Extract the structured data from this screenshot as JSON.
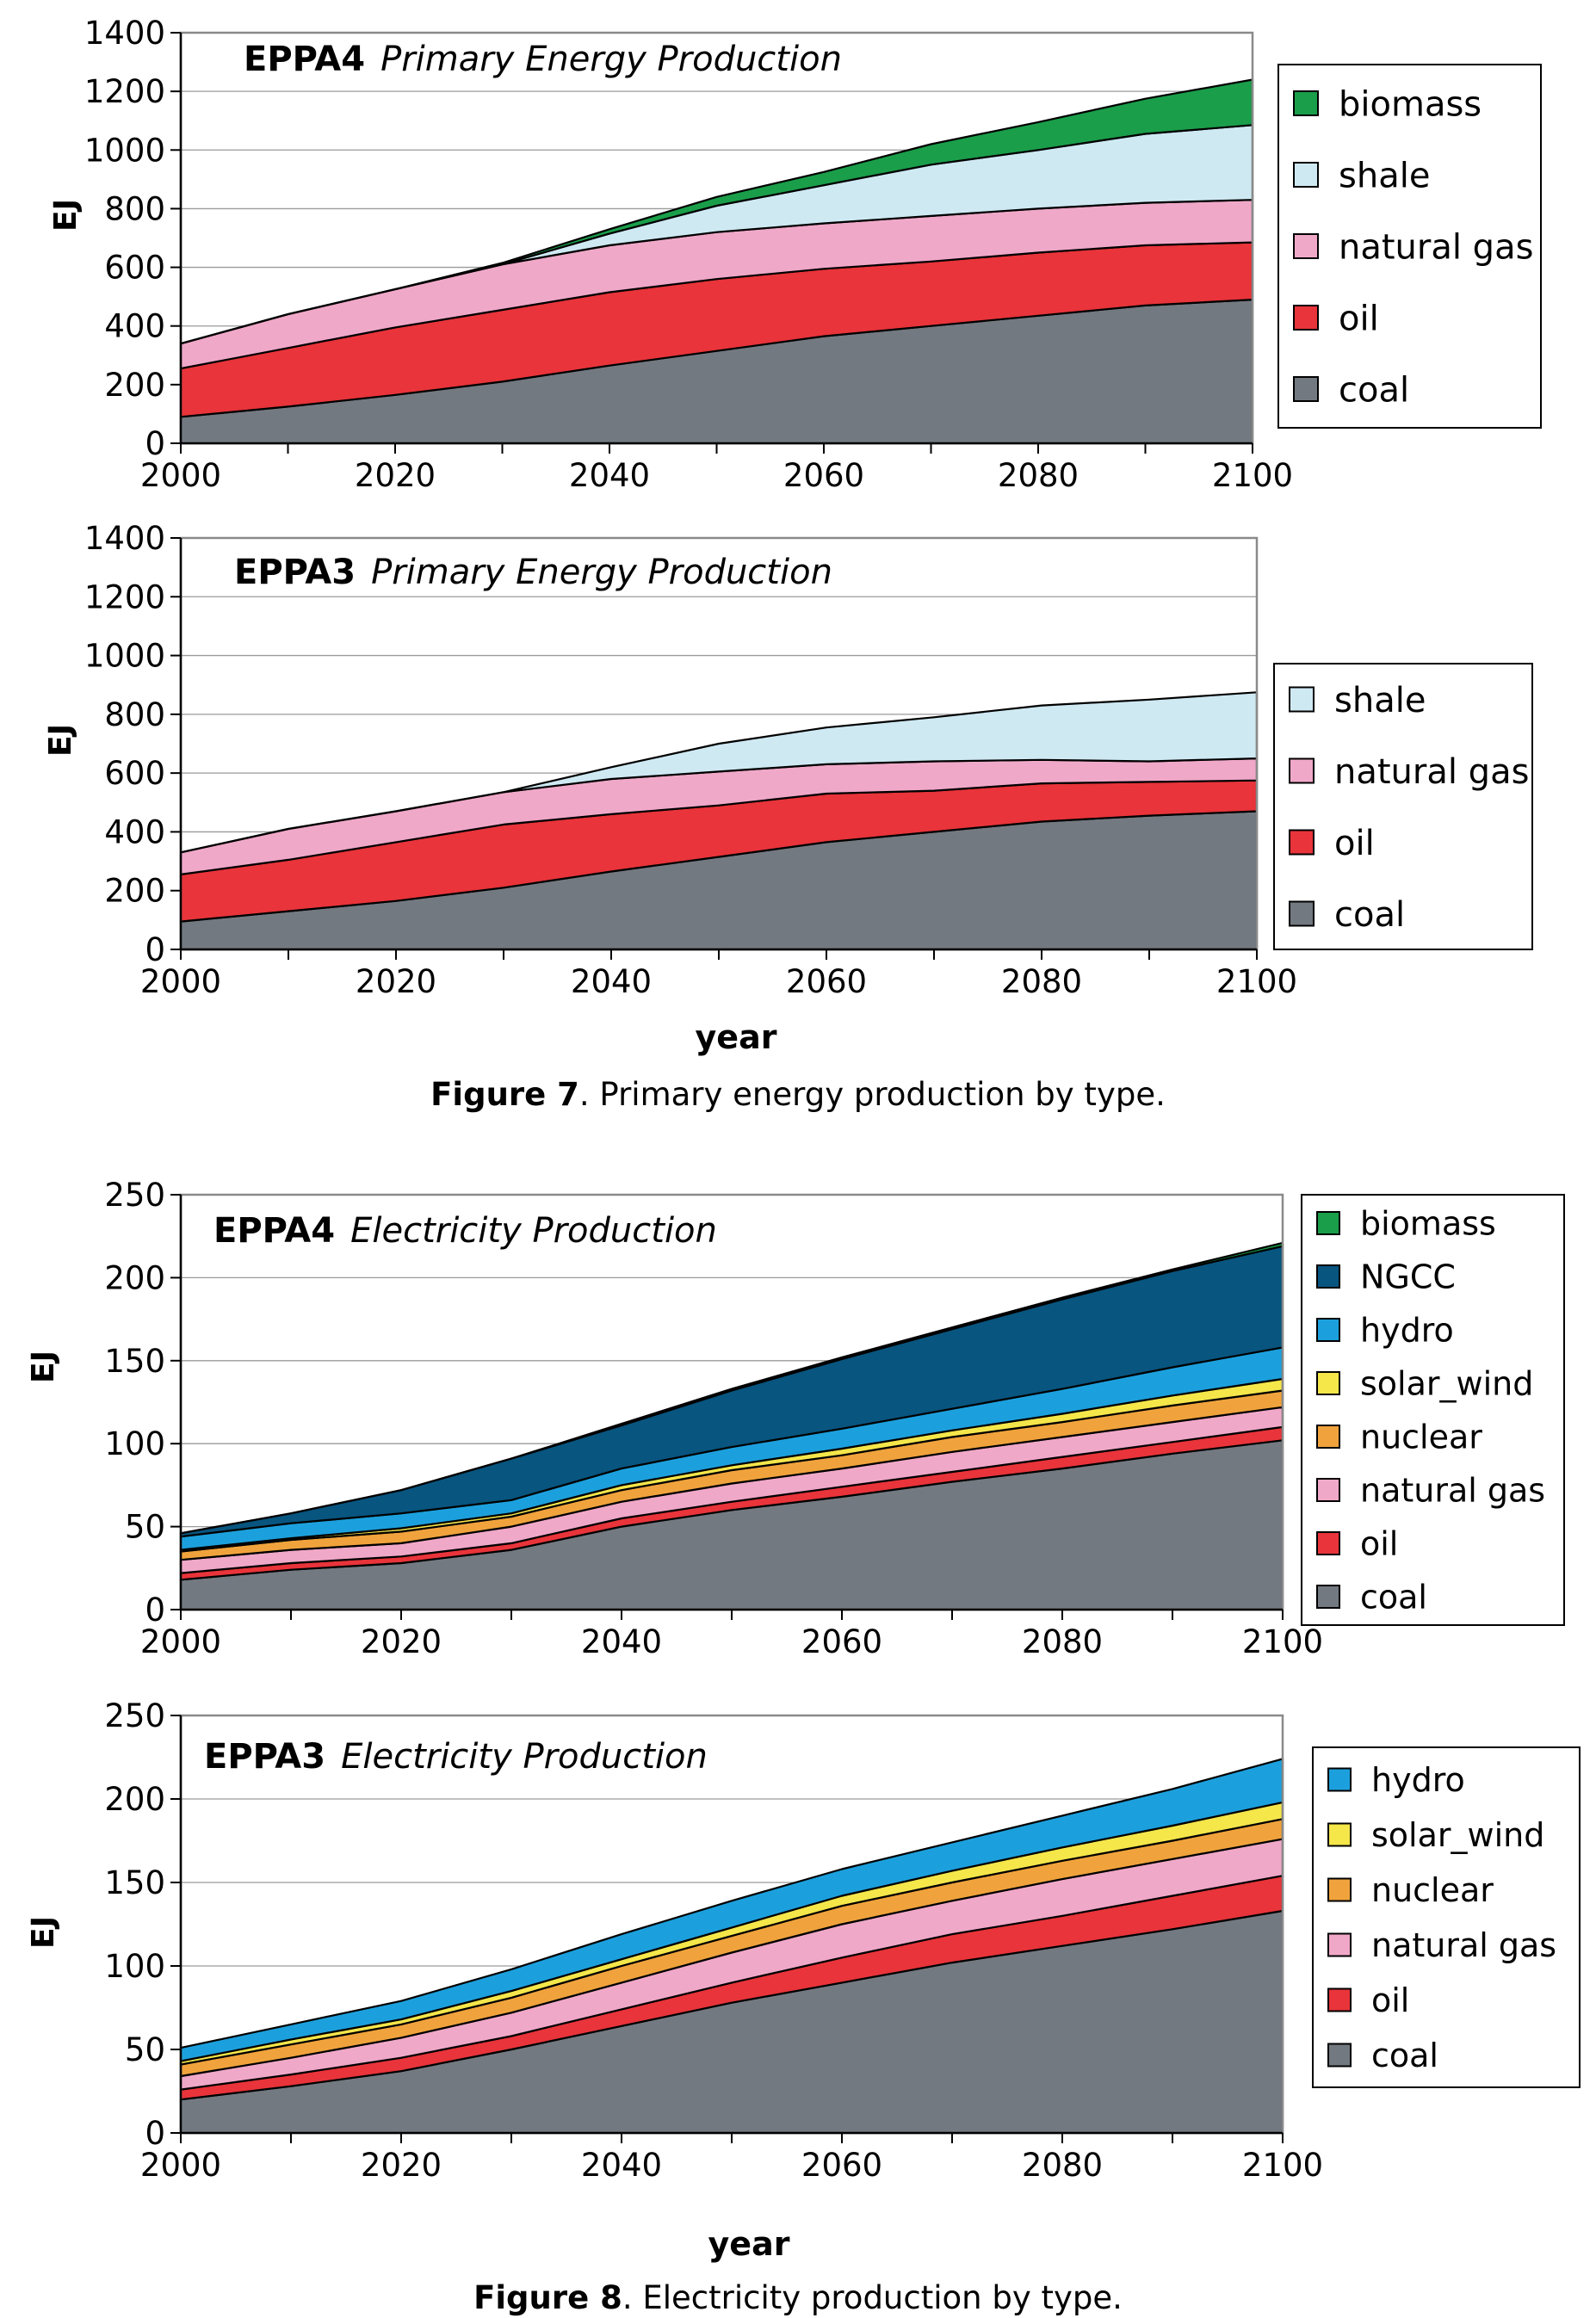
{
  "figure7": {
    "label": "Figure 7",
    "text": ". Primary energy production by type."
  },
  "figure8": {
    "label": "Figure 8",
    "text": ". Electricity production by type."
  },
  "colors": {
    "coal": "#737980",
    "oil": "#e8343a",
    "natural gas": "#f0a8c8",
    "shale": "#cfe9f3",
    "biomass": "#1a9e4a",
    "nuclear": "#f0a33c",
    "solar_wind": "#f5e64a",
    "hydro": "#1ca0dd",
    "NGCC": "#08557f"
  },
  "chart_data": [
    {
      "id": "c1",
      "type": "area",
      "stacked": true,
      "model": "EPPA4",
      "title": "Primary Energy Production",
      "xlabel": "",
      "ylabel": "EJ",
      "xlim": [
        2000,
        2100
      ],
      "ylim": [
        0,
        1400
      ],
      "yticks": [
        0,
        200,
        400,
        600,
        800,
        1000,
        1200,
        1400
      ],
      "xticks": [
        2000,
        2020,
        2040,
        2060,
        2080,
        2100
      ],
      "grid": true,
      "legend": [
        "biomass",
        "shale",
        "natural gas",
        "oil",
        "coal"
      ],
      "x": [
        2000,
        2010,
        2020,
        2030,
        2040,
        2050,
        2060,
        2070,
        2080,
        2090,
        2100
      ],
      "series": [
        {
          "name": "coal",
          "values": [
            90,
            125,
            165,
            210,
            265,
            315,
            365,
            400,
            435,
            470,
            490
          ]
        },
        {
          "name": "oil",
          "values": [
            165,
            200,
            230,
            245,
            250,
            245,
            230,
            220,
            215,
            205,
            195
          ]
        },
        {
          "name": "natural gas",
          "values": [
            85,
            115,
            130,
            155,
            160,
            160,
            155,
            155,
            150,
            145,
            145
          ]
        },
        {
          "name": "shale",
          "values": [
            0,
            0,
            0,
            0,
            40,
            90,
            130,
            175,
            200,
            235,
            255
          ]
        },
        {
          "name": "biomass",
          "values": [
            0,
            0,
            0,
            5,
            15,
            30,
            45,
            70,
            95,
            120,
            155
          ]
        }
      ]
    },
    {
      "id": "c2",
      "type": "area",
      "stacked": true,
      "model": "EPPA3",
      "title": "Primary Energy Production",
      "xlabel": "year",
      "ylabel": "EJ",
      "xlim": [
        2000,
        2100
      ],
      "ylim": [
        0,
        1400
      ],
      "yticks": [
        0,
        200,
        400,
        600,
        800,
        1000,
        1200,
        1400
      ],
      "xticks": [
        2000,
        2020,
        2040,
        2060,
        2080,
        2100
      ],
      "grid": true,
      "legend": [
        "shale",
        "natural gas",
        "oil",
        "coal"
      ],
      "x": [
        2000,
        2010,
        2020,
        2030,
        2040,
        2050,
        2060,
        2070,
        2080,
        2090,
        2100
      ],
      "series": [
        {
          "name": "coal",
          "values": [
            95,
            130,
            165,
            210,
            265,
            315,
            365,
            400,
            435,
            455,
            470
          ]
        },
        {
          "name": "oil",
          "values": [
            160,
            175,
            200,
            215,
            195,
            175,
            165,
            140,
            130,
            115,
            105
          ]
        },
        {
          "name": "natural gas",
          "values": [
            75,
            105,
            105,
            110,
            120,
            115,
            100,
            100,
            80,
            70,
            75
          ]
        },
        {
          "name": "shale",
          "values": [
            0,
            0,
            0,
            0,
            40,
            95,
            125,
            150,
            185,
            210,
            225
          ]
        }
      ]
    },
    {
      "id": "c3",
      "type": "area",
      "stacked": true,
      "model": "EPPA4",
      "title": "Electricity Production",
      "xlabel": "",
      "ylabel": "EJ",
      "xlim": [
        2000,
        2100
      ],
      "ylim": [
        0,
        250
      ],
      "yticks": [
        0,
        50,
        100,
        150,
        200,
        250
      ],
      "xticks": [
        2000,
        2020,
        2040,
        2060,
        2080,
        2100
      ],
      "grid": true,
      "legend": [
        "biomass",
        "NGCC",
        "hydro",
        "solar_wind",
        "nuclear",
        "natural gas",
        "oil",
        "coal"
      ],
      "x": [
        2000,
        2010,
        2020,
        2030,
        2040,
        2050,
        2060,
        2070,
        2080,
        2090,
        2100
      ],
      "series": [
        {
          "name": "coal",
          "values": [
            18,
            24,
            28,
            36,
            50,
            60,
            68,
            77,
            85,
            94,
            102
          ]
        },
        {
          "name": "oil",
          "values": [
            4,
            4,
            4,
            4,
            5,
            5,
            6,
            6,
            7,
            7,
            8
          ]
        },
        {
          "name": "natural gas",
          "values": [
            8,
            8,
            8,
            10,
            10,
            11,
            11,
            12,
            12,
            12,
            12
          ]
        },
        {
          "name": "nuclear",
          "values": [
            5,
            6,
            7,
            6,
            7,
            8,
            8,
            9,
            9,
            10,
            10
          ]
        },
        {
          "name": "solar_wind",
          "values": [
            1,
            1,
            2,
            2,
            3,
            3,
            4,
            4,
            5,
            6,
            7
          ]
        },
        {
          "name": "hydro",
          "values": [
            8,
            9,
            9,
            8,
            10,
            11,
            12,
            13,
            15,
            17,
            19
          ]
        },
        {
          "name": "NGCC",
          "values": [
            2,
            6,
            14,
            25,
            26,
            34,
            42,
            48,
            54,
            58,
            61
          ]
        },
        {
          "name": "biomass",
          "values": [
            0,
            0,
            0,
            0,
            1,
            1,
            1,
            1,
            1,
            1,
            2
          ]
        }
      ]
    },
    {
      "id": "c4",
      "type": "area",
      "stacked": true,
      "model": "EPPA3",
      "title": "Electricity Production",
      "xlabel": "year",
      "ylabel": "EJ",
      "xlim": [
        2000,
        2100
      ],
      "ylim": [
        0,
        250
      ],
      "yticks": [
        0,
        50,
        100,
        150,
        200,
        250
      ],
      "xticks": [
        2000,
        2020,
        2040,
        2060,
        2080,
        2100
      ],
      "grid": true,
      "legend": [
        "hydro",
        "solar_wind",
        "nuclear",
        "natural gas",
        "oil",
        "coal"
      ],
      "x": [
        2000,
        2010,
        2020,
        2030,
        2040,
        2050,
        2060,
        2070,
        2080,
        2090,
        2100
      ],
      "series": [
        {
          "name": "coal",
          "values": [
            20,
            28,
            37,
            50,
            64,
            78,
            90,
            102,
            112,
            122,
            133
          ]
        },
        {
          "name": "oil",
          "values": [
            6,
            7,
            8,
            8,
            10,
            12,
            15,
            17,
            18,
            20,
            21
          ]
        },
        {
          "name": "natural gas",
          "values": [
            8,
            10,
            12,
            14,
            16,
            18,
            20,
            20,
            22,
            22,
            22
          ]
        },
        {
          "name": "nuclear",
          "values": [
            7,
            8,
            8,
            9,
            10,
            10,
            11,
            11,
            11,
            11,
            12
          ]
        },
        {
          "name": "solar_wind",
          "values": [
            2,
            3,
            3,
            4,
            4,
            5,
            6,
            7,
            8,
            9,
            10
          ]
        },
        {
          "name": "hydro",
          "values": [
            8,
            9,
            11,
            13,
            15,
            16,
            16,
            17,
            19,
            22,
            26
          ]
        }
      ]
    }
  ]
}
